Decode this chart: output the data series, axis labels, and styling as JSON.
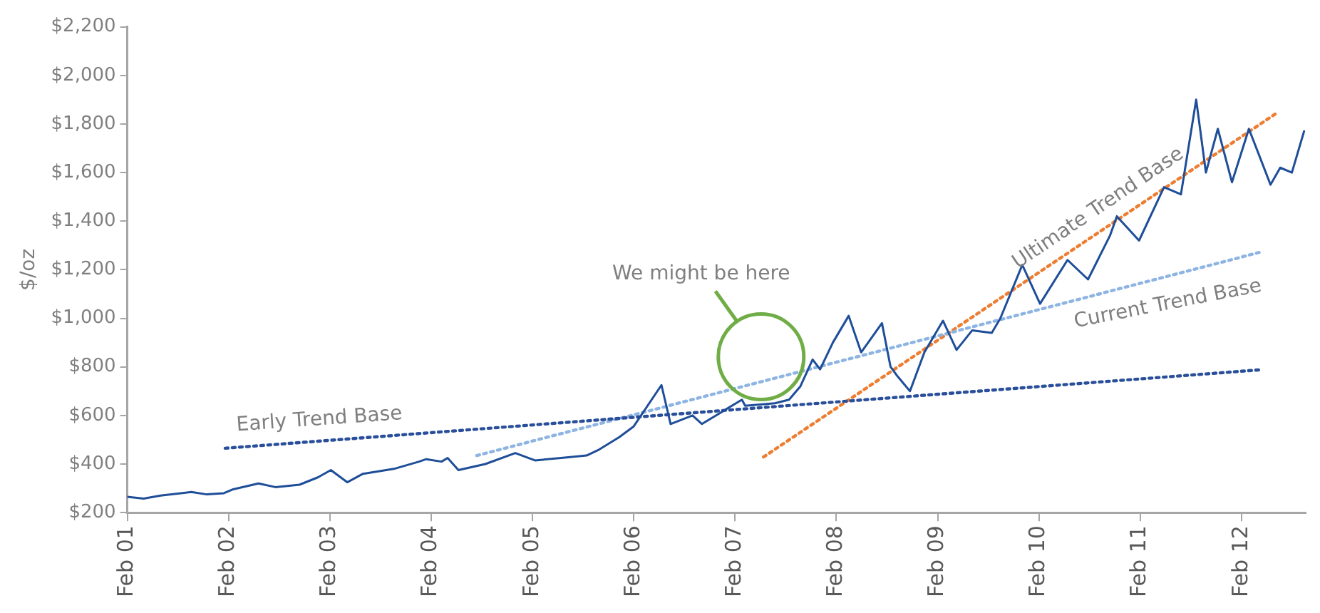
{
  "chart_data": {
    "type": "line",
    "ylabel": "$/oz",
    "grid": false,
    "legend": false,
    "marker": "none",
    "xlim": [
      "2001-02-01",
      "2012-09-20"
    ],
    "xticks": [
      {
        "value": "2001-02-01",
        "label": "Feb 01"
      },
      {
        "value": "2002-02-01",
        "label": "Feb 02"
      },
      {
        "value": "2003-02-01",
        "label": "Feb 03"
      },
      {
        "value": "2004-02-01",
        "label": "Feb 04"
      },
      {
        "value": "2005-02-01",
        "label": "Feb 05"
      },
      {
        "value": "2006-02-01",
        "label": "Feb 06"
      },
      {
        "value": "2007-02-01",
        "label": "Feb 07"
      },
      {
        "value": "2008-02-01",
        "label": "Feb 08"
      },
      {
        "value": "2009-02-01",
        "label": "Feb 09"
      },
      {
        "value": "2010-02-01",
        "label": "Feb 10"
      },
      {
        "value": "2011-02-01",
        "label": "Feb 11"
      },
      {
        "value": "2012-02-01",
        "label": "Feb 12"
      }
    ],
    "ylim": [
      200,
      2200
    ],
    "yticks": [
      {
        "value": 200,
        "label": "$200"
      },
      {
        "value": 400,
        "label": "$400"
      },
      {
        "value": 600,
        "label": "$600"
      },
      {
        "value": 800,
        "label": "$800"
      },
      {
        "value": 1000,
        "label": "$1,000"
      },
      {
        "value": 1200,
        "label": "$1,200"
      },
      {
        "value": 1400,
        "label": "$1,400"
      },
      {
        "value": 1600,
        "label": "$1,600"
      },
      {
        "value": 1800,
        "label": "$1,800"
      },
      {
        "value": 2000,
        "label": "$2,000"
      },
      {
        "value": 2200,
        "label": "$2,200"
      }
    ],
    "series": [
      {
        "type": "line",
        "color": "#1f4e99",
        "line_style": "solid",
        "x": [
          "2001-02-01",
          "2001-04-01",
          "2001-06-01",
          "2001-09-20",
          "2001-11-15",
          "2002-01-15",
          "2002-02-15",
          "2002-05-20",
          "2002-07-20",
          "2002-10-15",
          "2002-12-20",
          "2003-02-05",
          "2003-04-05",
          "2003-06-01",
          "2003-09-20",
          "2003-12-20",
          "2004-01-15",
          "2004-03-10",
          "2004-04-01",
          "2004-05-10",
          "2004-08-15",
          "2004-12-01",
          "2005-02-10",
          "2005-05-15",
          "2005-08-15",
          "2005-09-30",
          "2005-12-10",
          "2006-02-01",
          "2006-05-12",
          "2006-06-14",
          "2006-09-01",
          "2006-10-05",
          "2007-02-26",
          "2007-03-10",
          "2007-06-25",
          "2007-08-15",
          "2007-09-25",
          "2007-11-08",
          "2007-12-05",
          "2008-01-20",
          "2008-03-17",
          "2008-05-01",
          "2008-07-15",
          "2008-08-15",
          "2008-09-10",
          "2008-10-24",
          "2008-12-15",
          "2009-02-20",
          "2009-04-10",
          "2009-06-05",
          "2009-08-15",
          "2009-09-15",
          "2009-12-03",
          "2010-02-05",
          "2010-05-15",
          "2010-07-28",
          "2010-10-15",
          "2010-11-09",
          "2011-01-28",
          "2011-04-28",
          "2011-06-28",
          "2011-08-22",
          "2011-09-26",
          "2011-11-08",
          "2011-12-29",
          "2012-02-28",
          "2012-05-16",
          "2012-06-20",
          "2012-08-01",
          "2012-09-14"
        ],
        "values": [
          265,
          258,
          270,
          285,
          275,
          280,
          295,
          320,
          305,
          315,
          345,
          375,
          325,
          360,
          380,
          410,
          420,
          410,
          425,
          375,
          400,
          445,
          415,
          425,
          435,
          460,
          510,
          555,
          725,
          565,
          600,
          565,
          665,
          640,
          650,
          665,
          720,
          830,
          790,
          900,
          1010,
          860,
          980,
          800,
          760,
          700,
          860,
          990,
          870,
          950,
          940,
          1000,
          1220,
          1060,
          1240,
          1160,
          1340,
          1420,
          1320,
          1540,
          1510,
          1900,
          1600,
          1780,
          1560,
          1780,
          1550,
          1620,
          1600,
          1770
        ]
      },
      {
        "type": "line",
        "color": "#2a4f9a",
        "line_style": "dotted",
        "x": [
          "2002-01-20",
          "2012-04-10"
        ],
        "values": [
          465,
          788
        ]
      },
      {
        "type": "line",
        "color": "#8db4e2",
        "line_style": "dotted",
        "x": [
          "2004-07-15",
          "2012-04-05"
        ],
        "values": [
          435,
          1271
        ]
      },
      {
        "type": "line",
        "color": "#ed7d31",
        "line_style": "dotted",
        "x": [
          "2007-05-15",
          "2012-06-10"
        ],
        "values": [
          429,
          1847
        ]
      }
    ],
    "annotations": [
      "We might be here",
      "Early Trend Base",
      "Current Trend Base",
      "Ultimate Trend Base"
    ]
  }
}
